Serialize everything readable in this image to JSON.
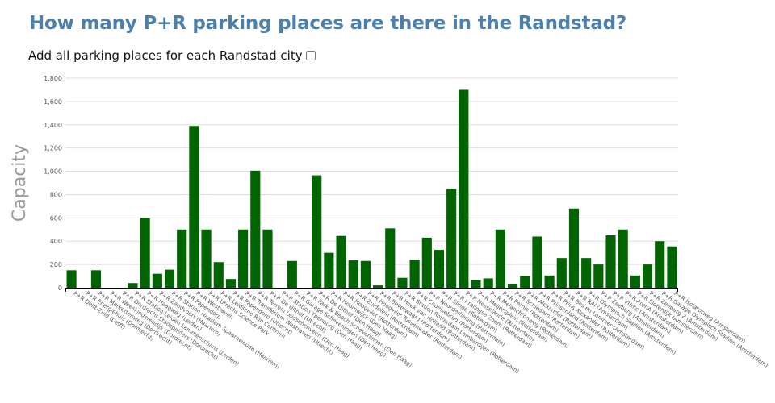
{
  "header": {
    "title": "How many P+R parking places are there in the Randstad?"
  },
  "controls": {
    "add_all_label": "Add all parking places for each Randstad city",
    "add_all_checked": false
  },
  "colors": {
    "bar": "#006400",
    "grid": "#dddddd",
    "axis": "#000000"
  },
  "chart_data": {
    "type": "bar",
    "title": "How many P+R parking places are there in the Randstad?",
    "xlabel": "",
    "ylabel": "Capacity",
    "ylim": [
      0,
      1800
    ],
    "yticks": [
      0,
      200,
      400,
      600,
      800,
      1000,
      1200,
      1400,
      1600,
      1800
    ],
    "ytick_labels": [
      "0",
      "200",
      "400",
      "600",
      "800",
      "1,000",
      "1,200",
      "1,400",
      "1,600",
      "1,800"
    ],
    "grid": true,
    "legend": "none",
    "categories": [
      "P+R Delft-Zuid (Delft)",
      "P+R Energiehuis (Dordrecht)",
      "P+R Markettenweg (Dordrecht)",
      "P+R Weeskinderendijk (Dordrecht)",
      "P+R Dordrecht Stadspolders (Dordrecht)",
      "P+R Station Leiden Lammenschans (Leiden)",
      "P+R Haagweg (Leiden)",
      "P+R Zandvoort (Haarlem)",
      "P+R Station Haarlem Spaarnwoude (Haarlem)",
      "P+R Papendorp",
      "P+R Westraven",
      "P+R Utrecht Science Park",
      "P+R Leidsche Rijn Centrum",
      "P+R Papendorp (Utrecht)",
      "P+R Transferium Westraven (Utrecht)",
      "P+R Terrein Leidschenveen (Den Haag)",
      "P+R De Uithof (Utrecht)",
      "P+R Station Ypenburg (Den Haag)",
      "P+R Garage Scheveningen (Den Haag)",
      "P+R Park & Beach Scheveningen (Den Haag)",
      "P+R De Uithof (Den Haag)",
      "P+R Hoornwijck (Den Haag)",
      "P+R Hoogvliet (Rotterdam)",
      "P+R Zuidplein (Rotterdam)",
      "P+R Hoogvliet Tussenwater (Rotterdam)",
      "P+R Beverwaard (Rotterdam)",
      "P+R Hoek van Holland (Rotterdam)",
      "P+R Station Rotterdam Lombardijen (Rotterdam)",
      "P+R Capelsebrug (Rotterdam)",
      "P+R Noorderhelling (Rotterdam)",
      "P+R Slinge (Rotterdam)",
      "P+R Kralingse Zoom (Rotterdam)",
      "P+R Nesselande (Rotterdam)",
      "P+R Meijersplein (Rotterdam)",
      "P+R Melanchtonweg (Rotterdam)",
      "P+R Pernis (Rotterdam)",
      "P+R Schiedam (Rotterdam)",
      "P+R Alexander (Rotterdam)",
      "P+R Prinsenland (Rotterdam)",
      "P+R Prins Alexander (Rotterdam)",
      "P+R Bos en Lommer (Amsterdam)",
      "P+R RAI (Amsterdam)",
      "P+R Olympisch Stadion (Amsterdam)",
      "P+R Zeeburg (Amsterdam)",
      "P+R VUmc (Amsterdam)",
      "P+R ArenA (Amsterdam)",
      "P+R Sloterdijk (Amsterdam)",
      "P+R Zeeburg 2 (Amsterdam)",
      "P+R Garage Olympisch Stadion (Amsterdam)",
      "P+R Isolatorweg (Amsterdam)"
    ],
    "values": [
      150,
      0,
      150,
      0,
      0,
      40,
      600,
      120,
      155,
      500,
      1390,
      500,
      220,
      75,
      500,
      1005,
      500,
      0,
      230,
      0,
      965,
      300,
      445,
      235,
      230,
      20,
      510,
      85,
      240,
      430,
      325,
      850,
      1700,
      65,
      80,
      500,
      35,
      100,
      440,
      105,
      255,
      680,
      255,
      200,
      450,
      500,
      105,
      200,
      400,
      355
    ]
  }
}
